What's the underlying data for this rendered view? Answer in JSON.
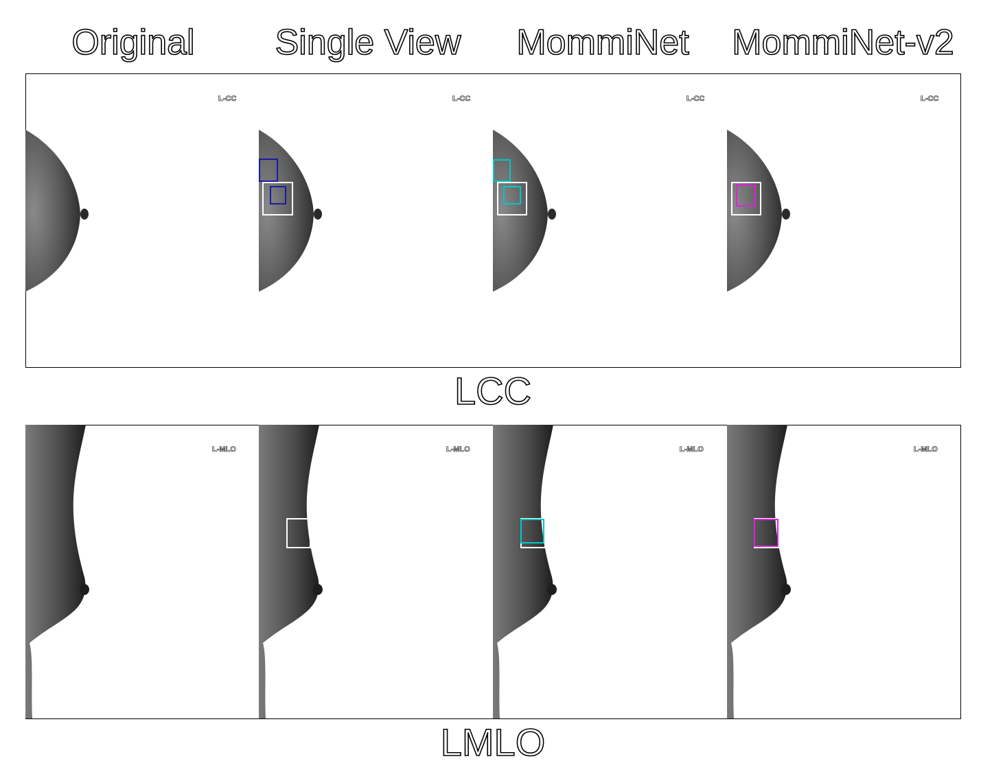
{
  "columns": [
    {
      "id": "original",
      "title": "Original"
    },
    {
      "id": "single",
      "title": "Single View"
    },
    {
      "id": "mommi",
      "title": "MommiNet"
    },
    {
      "id": "mommi2",
      "title": "MommiNet-v2"
    }
  ],
  "rows": [
    {
      "id": "lcc",
      "label": "LCC",
      "view_tag": "L-CC",
      "detection_colors": {
        "ground_truth": "#ffffff",
        "single": "#1a1aa8",
        "mommi": "#00c8c8",
        "mommi2": "#e020e0"
      }
    },
    {
      "id": "lmlo",
      "label": "LMLO",
      "view_tag": "L-MLO",
      "detection_colors": {
        "ground_truth": "#ffffff",
        "single": "#1a1aa8",
        "mommi": "#00c8c8",
        "mommi2": "#e020e0"
      }
    }
  ]
}
